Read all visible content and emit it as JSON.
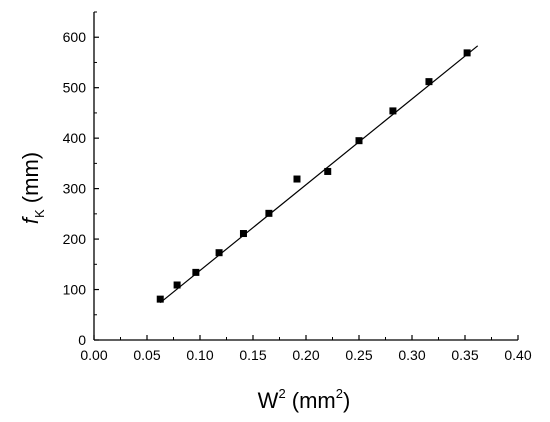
{
  "chart_data": {
    "type": "scatter",
    "xlabel": {
      "main": "W",
      "sup": "2",
      "rest": " (mm",
      "rest_sup": "2",
      "close": ")"
    },
    "ylabel": {
      "italic": "f",
      "sub": "K",
      "rest": " (mm)"
    },
    "xlim": [
      0.0,
      0.4
    ],
    "ylim": [
      0,
      650
    ],
    "xticks": [
      "0.00",
      "0.05",
      "0.10",
      "0.15",
      "0.20",
      "0.25",
      "0.30",
      "0.35",
      "0.40"
    ],
    "yticks": [
      "0",
      "100",
      "200",
      "300",
      "400",
      "500",
      "600"
    ],
    "series": [
      {
        "marker": "square",
        "color": "#000000",
        "points": [
          {
            "x": 0.0625,
            "y": 81
          },
          {
            "x": 0.0784,
            "y": 109
          },
          {
            "x": 0.0961,
            "y": 134
          },
          {
            "x": 0.118,
            "y": 173
          },
          {
            "x": 0.141,
            "y": 211
          },
          {
            "x": 0.165,
            "y": 251
          },
          {
            "x": 0.1915,
            "y": 319
          },
          {
            "x": 0.2205,
            "y": 334
          },
          {
            "x": 0.25,
            "y": 395
          },
          {
            "x": 0.282,
            "y": 454
          },
          {
            "x": 0.316,
            "y": 512
          },
          {
            "x": 0.352,
            "y": 569
          }
        ]
      }
    ],
    "fit_line": {
      "x": [
        0.0625,
        0.362
      ],
      "y": [
        74,
        583
      ],
      "color": "#000000"
    }
  }
}
